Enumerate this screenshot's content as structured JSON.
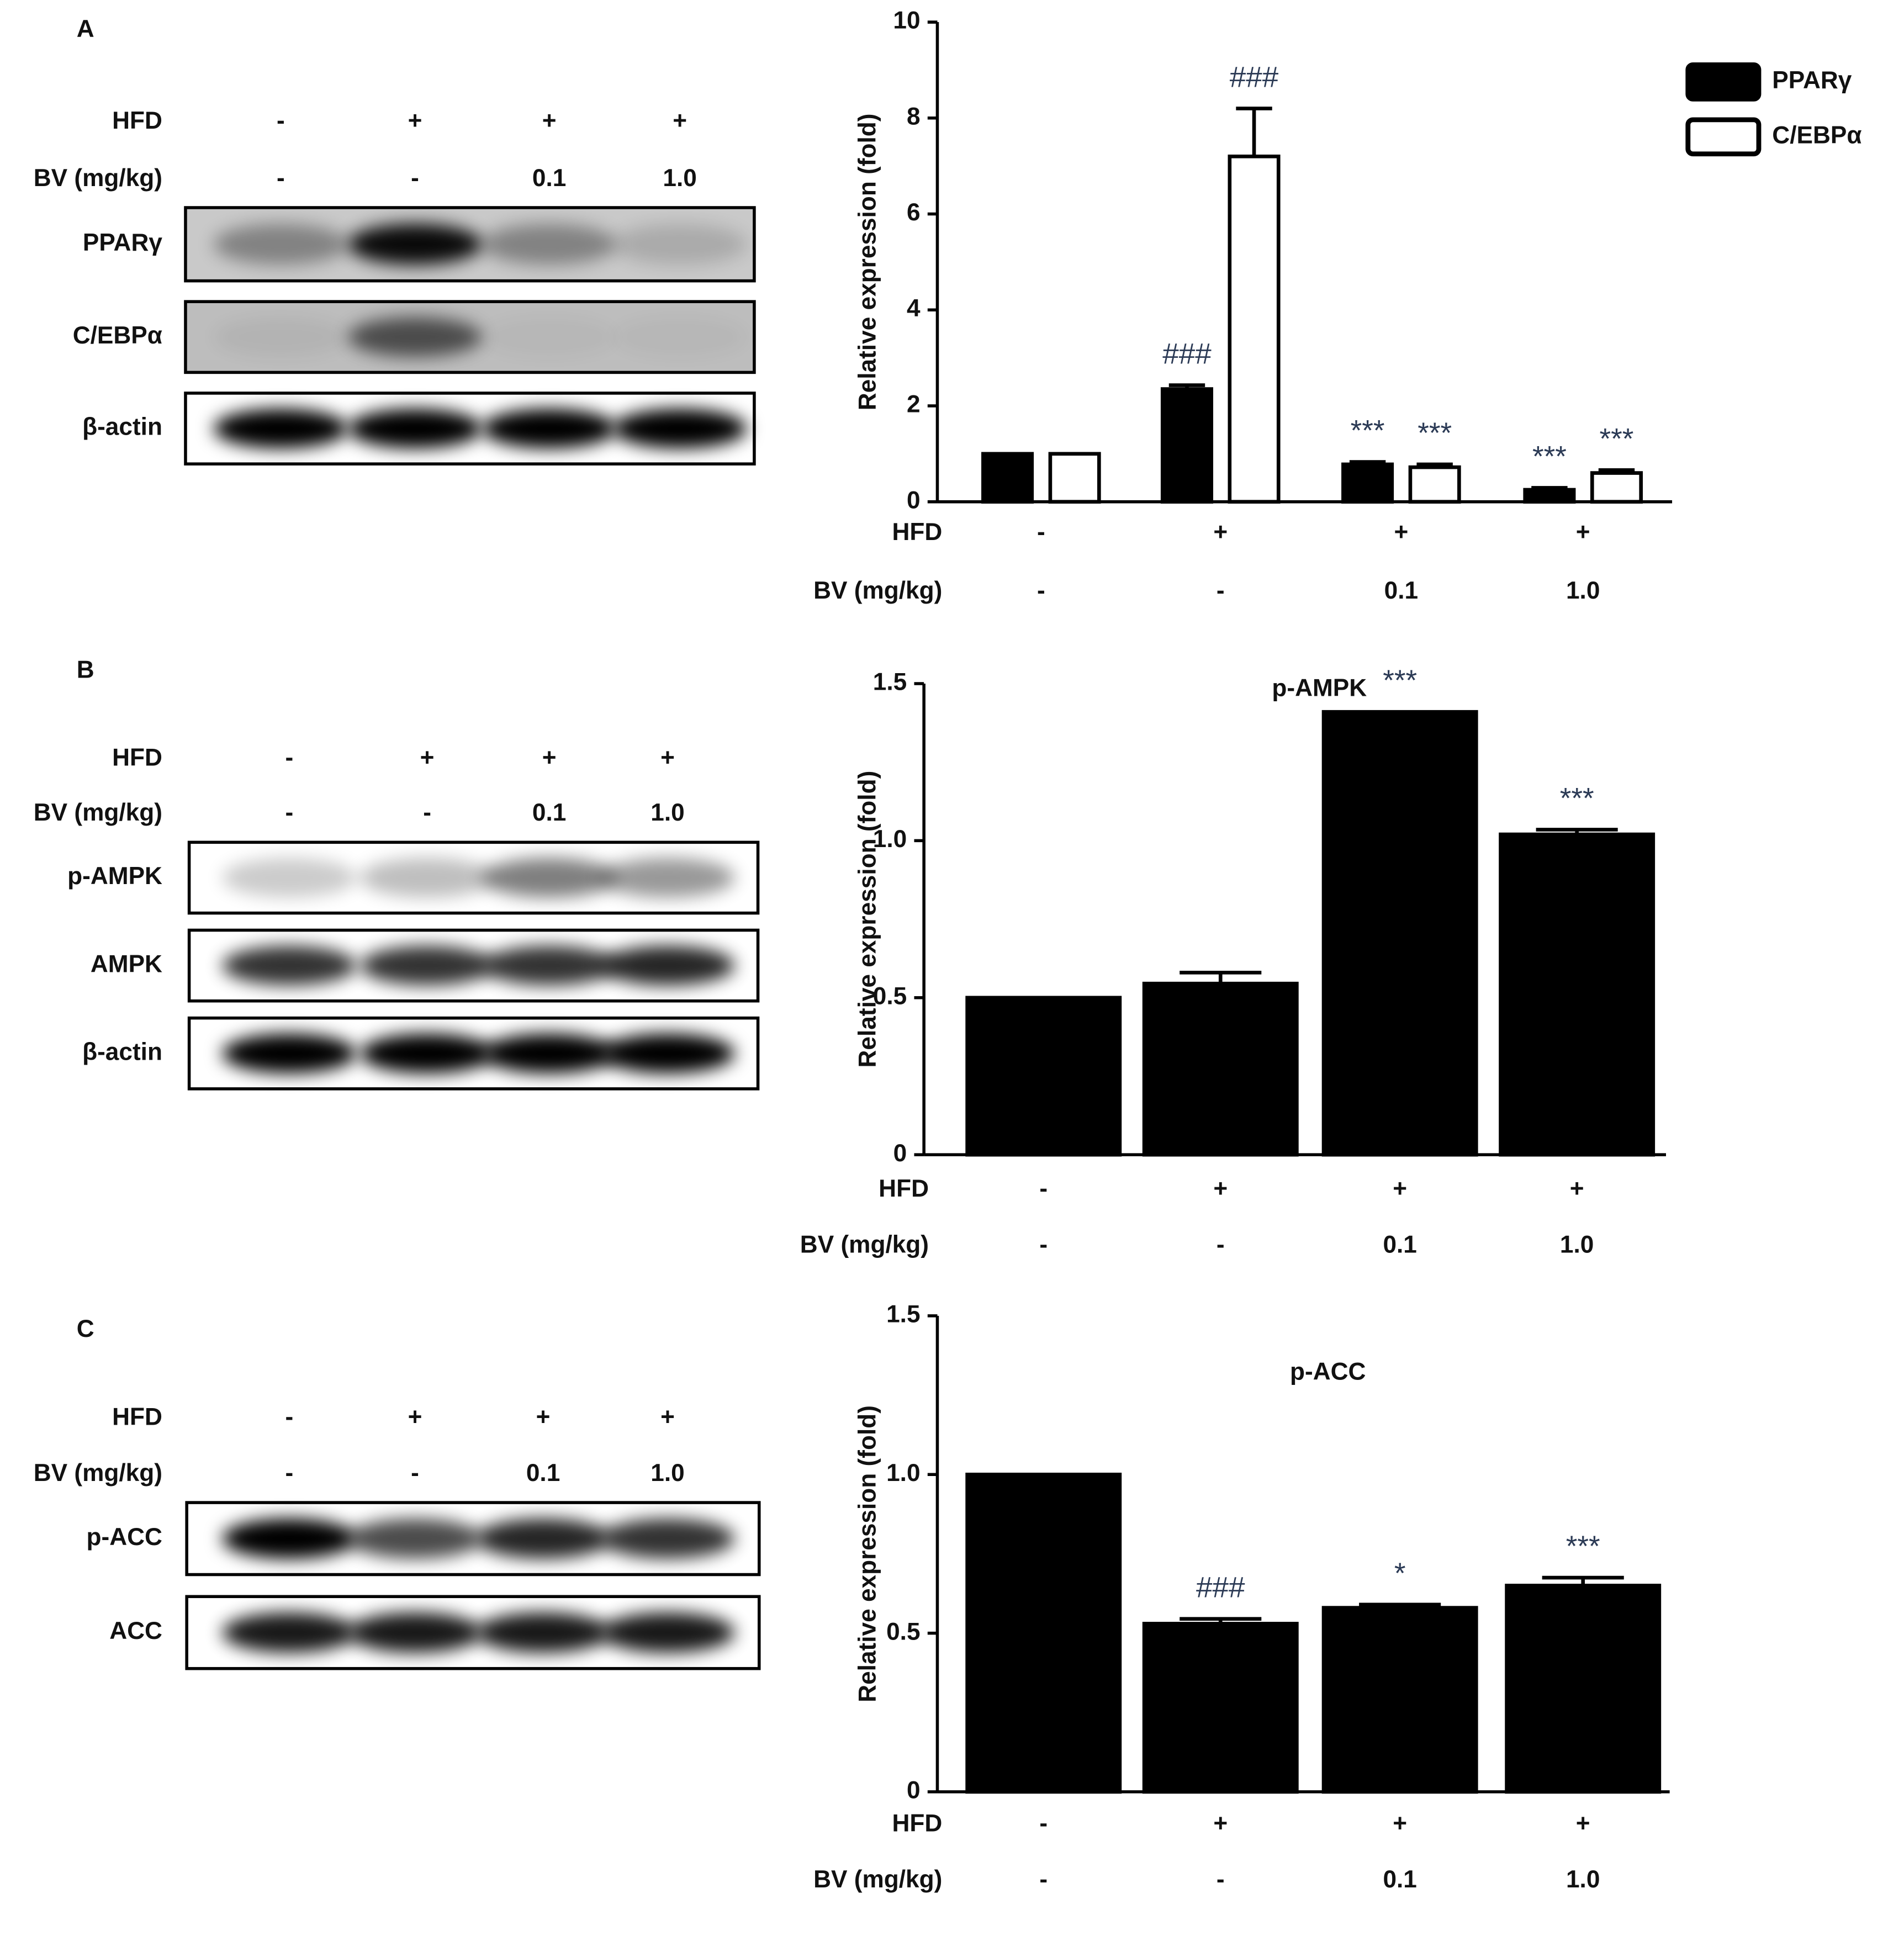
{
  "blots": [
    {
      "label": "A",
      "treatments": [
        {
          "name": "HFD",
          "values": [
            "-",
            "+",
            "+",
            "+"
          ]
        },
        {
          "name": "BV (mg/kg)",
          "values": [
            "-",
            "-",
            "0.1",
            "1.0"
          ]
        }
      ],
      "rows": [
        "PPARγ",
        "C/EBPα",
        "β-actin"
      ]
    },
    {
      "label": "B",
      "treatments": [
        {
          "name": "HFD",
          "values": [
            "-",
            "+",
            "+",
            "+"
          ]
        },
        {
          "name": "BV (mg/kg)",
          "values": [
            "-",
            "-",
            "0.1",
            "1.0"
          ]
        }
      ],
      "rows": [
        "p-AMPK",
        "AMPK",
        "β-actin"
      ]
    },
    {
      "label": "C",
      "treatments": [
        {
          "name": "HFD",
          "values": [
            "-",
            "+",
            "+",
            "+"
          ]
        },
        {
          "name": "BV (mg/kg)",
          "values": [
            "-",
            "-",
            "0.1",
            "1.0"
          ]
        }
      ],
      "rows": [
        "p-ACC",
        "ACC"
      ]
    }
  ],
  "chart_data": [
    {
      "type": "bar",
      "y_label": "Relative expression (fold)",
      "treatments": [
        {
          "name": "HFD",
          "values": [
            "-",
            "+",
            "+",
            "+"
          ]
        },
        {
          "name": "BV (mg/kg)",
          "values": [
            "-",
            "-",
            "0.1",
            "1.0"
          ]
        }
      ],
      "series": [
        {
          "name": "PPARγ",
          "color": "#000000",
          "values": [
            1.0,
            2.35,
            0.78,
            0.25
          ],
          "errors": [
            0,
            0.08,
            0.05,
            0.04
          ],
          "annotations": [
            null,
            "###",
            "***",
            "***"
          ]
        },
        {
          "name": "C/EBPα",
          "color": "#ffffff",
          "values": [
            1.0,
            7.2,
            0.72,
            0.6
          ],
          "errors": [
            0,
            1.0,
            0.06,
            0.06
          ],
          "annotations": [
            null,
            "###",
            "***",
            "***"
          ]
        }
      ],
      "ylim": [
        0,
        10
      ],
      "yticks": [
        0,
        2,
        4,
        6,
        8,
        10
      ],
      "legend": "upper right"
    },
    {
      "type": "bar",
      "title": "p-AMPK",
      "y_label": "Relative expression (fold)",
      "treatments": [
        {
          "name": "HFD",
          "values": [
            "-",
            "+",
            "+",
            "+"
          ]
        },
        {
          "name": "BV (mg/kg)",
          "values": [
            "-",
            "-",
            "0.1",
            "1.0"
          ]
        }
      ],
      "series": [
        {
          "color": "#000000",
          "values": [
            0.5,
            0.545,
            1.41,
            1.02
          ],
          "errors": [
            0,
            0.035,
            0,
            0.015
          ],
          "annotations": [
            null,
            null,
            "***",
            "***"
          ]
        }
      ],
      "ylim": [
        0,
        1.5
      ],
      "yticks": [
        0,
        0.5,
        {
          "value": 1,
          "label": "1.0"
        },
        1.5
      ]
    },
    {
      "type": "bar",
      "title": "p-ACC",
      "y_label": "Relative expression (fold)",
      "treatments": [
        {
          "name": "HFD",
          "values": [
            "-",
            "+",
            "+",
            "+"
          ]
        },
        {
          "name": "BV (mg/kg)",
          "values": [
            "-",
            "-",
            "0.1",
            "1.0"
          ]
        }
      ],
      "series": [
        {
          "color": "#000000",
          "values": [
            1.0,
            0.53,
            0.58,
            0.65
          ],
          "errors": [
            0,
            0.015,
            0.01,
            0.025
          ],
          "annotations": [
            null,
            "###",
            "*",
            "***"
          ]
        }
      ],
      "ylim": [
        0,
        1.5
      ],
      "yticks": [
        0,
        0.5,
        {
          "value": 1,
          "label": "1.0"
        },
        1.5
      ]
    }
  ]
}
